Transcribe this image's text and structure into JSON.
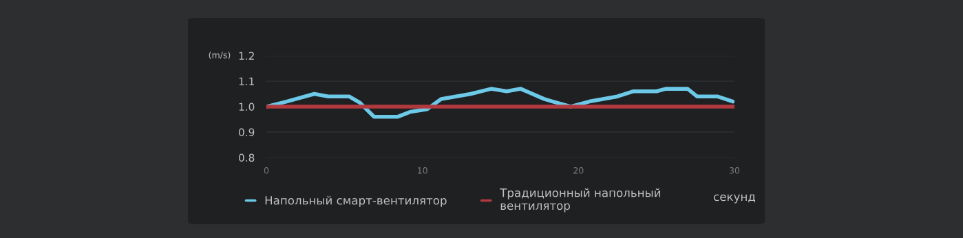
{
  "chart_data": {
    "type": "line",
    "xlabel": "секунд",
    "ylabel": "(m/s)",
    "x": [
      0,
      1.3,
      3.07,
      3.96,
      5.3,
      6.0,
      6.9,
      8.4,
      9.25,
      10.3,
      11.2,
      13.1,
      14.4,
      15.4,
      16.3,
      17.8,
      18.35,
      19.5,
      20.7,
      22.5,
      23.5,
      25,
      25.6,
      27,
      27.6,
      28.9,
      29.9
    ],
    "series": [
      {
        "name": "Напольный смарт-вентилятор",
        "color": "#6cc9e8",
        "values": [
          1.0,
          1.02,
          1.05,
          1.04,
          1.04,
          1.015,
          0.96,
          0.96,
          0.98,
          0.99,
          1.03,
          1.05,
          1.07,
          1.06,
          1.07,
          1.03,
          1.02,
          1.0,
          1.02,
          1.04,
          1.06,
          1.06,
          1.07,
          1.07,
          1.04,
          1.04,
          1.02
        ]
      },
      {
        "name": "Традиционный напольный\nвентилятор",
        "color": "#b23a3f",
        "x": [
          0,
          30
        ],
        "values": [
          1.0,
          1.0
        ]
      }
    ],
    "xlim": [
      0,
      30
    ],
    "xticks": [
      0,
      10,
      20,
      30
    ],
    "ylim": [
      0.8,
      1.2
    ],
    "yticks": [
      0.8,
      0.9,
      {
        "value": 1,
        "label": "1.0"
      },
      1.1,
      1.2
    ],
    "grid": "y",
    "legend": "bottom"
  }
}
